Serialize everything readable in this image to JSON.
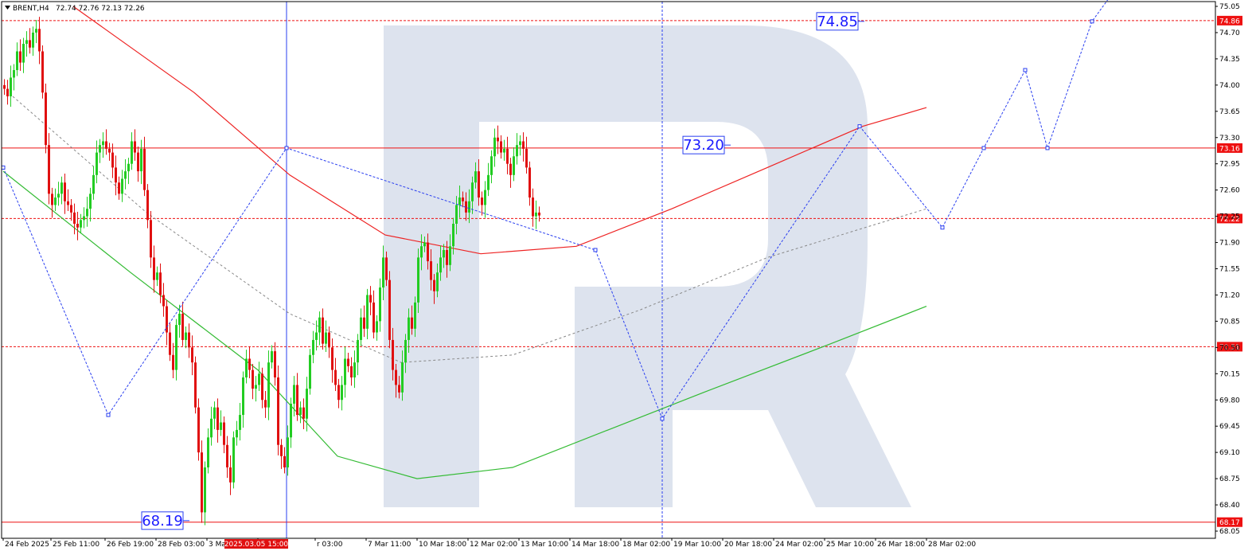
{
  "header": {
    "symbol": "BRENT,H4",
    "ohlc": "72.74 72.76 72.13 72.26"
  },
  "colors": {
    "bull": "#22cc22",
    "bear": "#e01010",
    "ma_red": "#ee2222",
    "ma_green": "#33bb33",
    "forecast": "#2a3ff0",
    "level": "#ee1111",
    "watermark": "#dde3ee",
    "grid_axis": "#000000"
  },
  "chart_data": {
    "type": "candlestick",
    "symbol": "BRENT",
    "timeframe": "H4",
    "y_range": [
      68.05,
      75.05
    ],
    "y_ticks": [
      "75.05",
      "74.70",
      "74.35",
      "74.00",
      "73.65",
      "73.30",
      "72.95",
      "72.60",
      "72.25",
      "71.90",
      "71.55",
      "71.20",
      "70.85",
      "70.50",
      "70.15",
      "69.80",
      "69.45",
      "69.10",
      "68.75",
      "68.40",
      "68.05"
    ],
    "x_labels": [
      "24 Feb 2025",
      "25 Feb 11:00",
      "26 Feb 19:00",
      "28 Feb 03:00",
      "3 Mar 11:00",
      "2025.03.05 15:00",
      "r 03:00",
      "7 Mar 11:00",
      "10 Mar 18:00",
      "12 Mar 02:00",
      "13 Mar 10:00",
      "14 Mar 18:00",
      "18 Mar 02:00",
      "19 Mar 10:00",
      "20 Mar 18:00",
      "24 Mar 02:00",
      "25 Mar 10:00",
      "26 Mar 18:00",
      "28 Mar 02:00"
    ],
    "x_label_bars": [
      0,
      15,
      32,
      48,
      64,
      80,
      98,
      114,
      130,
      146,
      162,
      178,
      194,
      210,
      226,
      242,
      258,
      274,
      290
    ],
    "highlighted_x_label": "2025.03.05 15:00",
    "price_levels": [
      {
        "price": 74.86,
        "label": "74.86",
        "style": "dashed"
      },
      {
        "price": 73.16,
        "label": "73.16",
        "style": "solid"
      },
      {
        "price": 72.22,
        "label": "72.22",
        "style": "dashed"
      },
      {
        "price": 70.51,
        "label": "70.51",
        "style": "dashed"
      },
      {
        "price": 68.17,
        "label": "68.17",
        "style": "solid"
      }
    ],
    "annotations": [
      {
        "text": "74.85",
        "price": 74.85,
        "bar": 262
      },
      {
        "text": "73.20",
        "price": 73.2,
        "bar": 220
      },
      {
        "text": "68.19",
        "price": 68.19,
        "bar": 50
      }
    ],
    "vertical_markers": [
      {
        "bar": 89,
        "style": "solid"
      },
      {
        "bar": 207,
        "style": "dashed"
      }
    ],
    "candles_close": [
      73.95,
      73.85,
      74.1,
      74.2,
      74.45,
      74.3,
      74.55,
      74.6,
      74.5,
      74.7,
      74.75,
      74.45,
      73.9,
      73.2,
      72.55,
      72.4,
      72.5,
      72.55,
      72.7,
      72.45,
      72.4,
      72.3,
      72.15,
      72.1,
      72.2,
      72.25,
      72.35,
      72.55,
      72.8,
      73.1,
      73.2,
      73.25,
      73.15,
      73.1,
      72.9,
      72.7,
      72.55,
      72.75,
      72.85,
      72.95,
      73.25,
      73.1,
      72.85,
      73.15,
      72.6,
      72.2,
      71.7,
      71.4,
      71.5,
      71.2,
      71.05,
      70.7,
      70.4,
      70.2,
      70.8,
      70.95,
      70.6,
      70.7,
      70.5,
      70.3,
      69.7,
      69.1,
      68.3,
      68.9,
      69.3,
      69.55,
      69.7,
      69.4,
      69.5,
      69.2,
      68.9,
      68.7,
      69.3,
      69.4,
      69.6,
      70.1,
      70.35,
      70.2,
      69.95,
      70.0,
      70.15,
      69.8,
      69.7,
      70.3,
      70.45,
      70.1,
      69.2,
      69.05,
      68.9,
      69.3,
      69.75,
      70.0,
      69.6,
      69.7,
      69.55,
      69.95,
      70.4,
      70.6,
      70.7,
      70.9,
      70.55,
      70.7,
      70.5,
      70.2,
      70.0,
      69.8,
      70.0,
      70.35,
      70.25,
      70.1,
      70.3,
      70.6,
      70.9,
      70.75,
      71.2,
      71.1,
      70.7,
      70.85,
      71.3,
      71.7,
      71.4,
      70.6,
      70.2,
      70.0,
      69.9,
      70.3,
      70.6,
      70.9,
      70.75,
      71.1,
      71.7,
      71.85,
      71.9,
      71.65,
      71.4,
      71.25,
      71.5,
      71.7,
      71.8,
      71.6,
      71.85,
      72.15,
      72.4,
      72.5,
      72.45,
      72.3,
      72.45,
      72.7,
      72.85,
      72.5,
      72.4,
      72.6,
      72.8,
      73.05,
      73.3,
      73.25,
      73.1,
      73.15,
      72.95,
      72.8,
      73.05,
      73.2,
      73.25,
      73.15,
      72.9,
      72.5,
      72.25,
      72.3,
      72.26
    ],
    "forecast_path": [
      {
        "bar": 0,
        "price": 72.9
      },
      {
        "bar": 33,
        "price": 69.6
      },
      {
        "bar": 89,
        "price": 73.16
      },
      {
        "bar": 186,
        "price": 71.8
      },
      {
        "bar": 207,
        "price": 69.55
      },
      {
        "bar": 269,
        "price": 73.45
      },
      {
        "bar": 295,
        "price": 72.1
      },
      {
        "bar": 308,
        "price": 73.16
      },
      {
        "bar": 321,
        "price": 74.2
      },
      {
        "bar": 328,
        "price": 73.16
      },
      {
        "bar": 342,
        "price": 74.85
      },
      {
        "bar": 348,
        "price": 75.2
      }
    ],
    "moving_average_red": [
      {
        "bar": 22,
        "price": 75.05
      },
      {
        "bar": 60,
        "price": 73.9
      },
      {
        "bar": 90,
        "price": 72.8
      },
      {
        "bar": 120,
        "price": 72.0
      },
      {
        "bar": 150,
        "price": 71.75
      },
      {
        "bar": 180,
        "price": 71.85
      },
      {
        "bar": 210,
        "price": 72.35
      },
      {
        "bar": 240,
        "price": 72.9
      },
      {
        "bar": 270,
        "price": 73.45
      },
      {
        "bar": 290,
        "price": 73.7
      }
    ],
    "moving_average_green": [
      {
        "bar": 0,
        "price": 72.85
      },
      {
        "bar": 40,
        "price": 71.5
      },
      {
        "bar": 80,
        "price": 70.2
      },
      {
        "bar": 105,
        "price": 69.05
      },
      {
        "bar": 130,
        "price": 68.75
      },
      {
        "bar": 160,
        "price": 68.9
      },
      {
        "bar": 190,
        "price": 69.4
      },
      {
        "bar": 220,
        "price": 69.9
      },
      {
        "bar": 260,
        "price": 70.55
      },
      {
        "bar": 290,
        "price": 71.05
      }
    ],
    "trend_line_grey": [
      {
        "bar": 3,
        "price": 73.85
      },
      {
        "bar": 45,
        "price": 72.3
      },
      {
        "bar": 90,
        "price": 70.95
      },
      {
        "bar": 125,
        "price": 70.3
      },
      {
        "bar": 160,
        "price": 70.4
      },
      {
        "bar": 200,
        "price": 71.0
      },
      {
        "bar": 240,
        "price": 71.7
      },
      {
        "bar": 290,
        "price": 72.35
      }
    ]
  }
}
